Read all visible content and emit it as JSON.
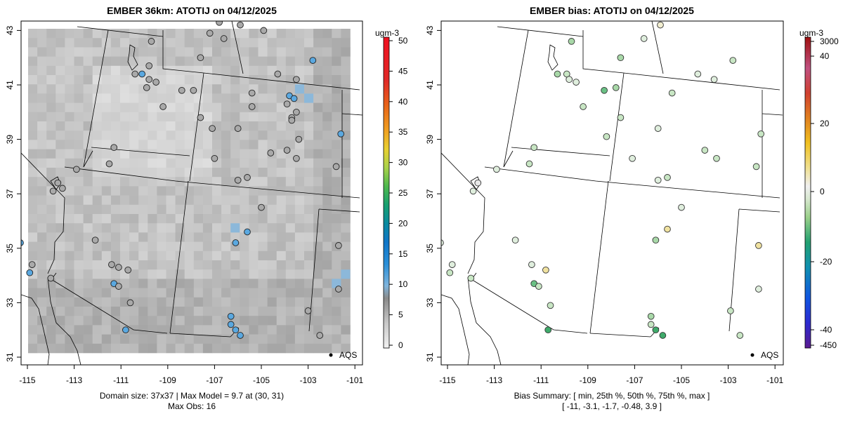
{
  "left_panel": {
    "title": "EMBER 36km: ATOTIJ on 04/12/2025",
    "x_ticks": [
      "-115",
      "-113",
      "-111",
      "-109",
      "-107",
      "-105",
      "-103",
      "-101"
    ],
    "y_ticks": [
      "31",
      "33",
      "35",
      "37",
      "39",
      "41",
      "43"
    ],
    "caption_line1": "Domain size: 37x37 | Max Model = 9.7 at (30, 31)",
    "caption_line2": "Max Obs: 16",
    "legend_label": "AQS",
    "colorbar": {
      "unit": "ugm-3",
      "labels": [
        "0",
        "5",
        "10",
        "15",
        "20",
        "25",
        "30",
        "35",
        "40",
        "45",
        "50"
      ]
    }
  },
  "right_panel": {
    "title": "EMBER bias: ATOTIJ on 04/12/2025",
    "x_ticks": [
      "-115",
      "-113",
      "-111",
      "-109",
      "-107",
      "-105",
      "-103",
      "-101"
    ],
    "y_ticks": [
      "31",
      "33",
      "35",
      "37",
      "39",
      "41",
      "43"
    ],
    "caption_line1": "Bias Summary: [ min, 25th %, 50th %, 75th %, max ]",
    "caption_line2": "[ -11,   -3.1,   -1.7,   -0.48,   3.9 ]",
    "legend_label": "AQS",
    "colorbar": {
      "unit": "ugm-3",
      "labels": [
        "3000",
        "40",
        "20",
        "0",
        "-20",
        "-40",
        "-450"
      ]
    }
  },
  "chart_data": [
    {
      "type": "heatmap",
      "title": "EMBER 36km: ATOTIJ on 04/12/2025",
      "xlim": [
        -115.3,
        -100.8
      ],
      "ylim": [
        30.8,
        43.3
      ],
      "colorbar_range": [
        0,
        50
      ],
      "series": [
        {
          "name": "AQS",
          "type": "scatter"
        }
      ],
      "stations": [
        [
          -114.9,
          34.1,
          12
        ],
        [
          -114.8,
          34.4,
          3
        ],
        [
          -113.9,
          37.1,
          3
        ],
        [
          -113.7,
          37.4,
          3
        ],
        [
          -113.5,
          37.2,
          3
        ],
        [
          -112.9,
          37.9,
          3
        ],
        [
          -112.1,
          35.3,
          3
        ],
        [
          -111.5,
          38.1,
          3
        ],
        [
          -111.3,
          38.7,
          3
        ],
        [
          -111.4,
          34.4,
          3
        ],
        [
          -111.1,
          34.3,
          3
        ],
        [
          -110.7,
          34.2,
          3
        ],
        [
          -111.3,
          33.7,
          12
        ],
        [
          -111.1,
          33.6,
          3
        ],
        [
          -110.6,
          33.0,
          3
        ],
        [
          -110.8,
          32.0,
          12
        ],
        [
          -109.7,
          42.6,
          3
        ],
        [
          -109.8,
          41.7,
          3
        ],
        [
          -110.1,
          41.4,
          12
        ],
        [
          -109.8,
          41.2,
          3
        ],
        [
          -109.9,
          40.9,
          3
        ],
        [
          -109.5,
          41.1,
          3
        ],
        [
          -110.4,
          41.4,
          3
        ],
        [
          -109.2,
          40.2,
          3
        ],
        [
          -108.4,
          40.8,
          3
        ],
        [
          -107.9,
          40.8,
          3
        ],
        [
          -107.6,
          42.0,
          3
        ],
        [
          -107.2,
          42.9,
          3
        ],
        [
          -106.8,
          43.3,
          3
        ],
        [
          -106.6,
          42.7,
          3
        ],
        [
          -105.9,
          43.2,
          3
        ],
        [
          -104.9,
          43.0,
          3
        ],
        [
          -104.3,
          41.4,
          3
        ],
        [
          -103.5,
          41.2,
          3
        ],
        [
          -105.4,
          40.7,
          3
        ],
        [
          -103.8,
          40.6,
          12
        ],
        [
          -103.6,
          40.5,
          12
        ],
        [
          -103.9,
          40.3,
          3
        ],
        [
          -103.5,
          40.0,
          3
        ],
        [
          -103.7,
          39.8,
          3
        ],
        [
          -103.7,
          39.7,
          3
        ],
        [
          -105.4,
          40.2,
          3
        ],
        [
          -106.0,
          39.4,
          3
        ],
        [
          -107.1,
          39.4,
          3
        ],
        [
          -107.6,
          39.8,
          3
        ],
        [
          -103.4,
          39.0,
          3
        ],
        [
          -103.9,
          38.6,
          3
        ],
        [
          -103.5,
          38.3,
          3
        ],
        [
          -104.6,
          38.5,
          3
        ],
        [
          -105.6,
          37.6,
          3
        ],
        [
          -107.0,
          38.3,
          3
        ],
        [
          -106.0,
          37.5,
          3
        ],
        [
          -105.0,
          36.5,
          3
        ],
        [
          -102.8,
          41.9,
          12
        ],
        [
          -101.6,
          39.2,
          12
        ],
        [
          -101.8,
          38.0,
          3
        ],
        [
          -105.6,
          35.6,
          12
        ],
        [
          -106.1,
          35.2,
          12
        ],
        [
          -101.7,
          35.1,
          3
        ],
        [
          -101.7,
          33.5,
          3
        ],
        [
          -103.0,
          32.7,
          3
        ],
        [
          -102.5,
          31.8,
          3
        ],
        [
          -106.3,
          32.5,
          12
        ],
        [
          -106.3,
          32.2,
          12
        ],
        [
          -106.1,
          32.0,
          12
        ],
        [
          -105.9,
          31.8,
          12
        ],
        [
          -115.3,
          35.2,
          12
        ],
        [
          -114.0,
          33.9,
          3
        ]
      ]
    },
    {
      "type": "scatter",
      "title": "EMBER bias: ATOTIJ on 04/12/2025",
      "xlim": [
        -115.3,
        -100.8
      ],
      "ylim": [
        30.8,
        43.3
      ],
      "colorbar_range": [
        -450,
        3000
      ],
      "bias_summary": {
        "min": -11,
        "p25": -3.1,
        "p50": -1.7,
        "p75": -0.48,
        "max": 3.9
      },
      "series": [
        {
          "name": "AQS"
        }
      ],
      "stations": [
        [
          -114.9,
          34.1,
          -3
        ],
        [
          -114.8,
          34.4,
          -1
        ],
        [
          -113.9,
          37.1,
          -1
        ],
        [
          -113.7,
          37.4,
          0
        ],
        [
          -112.9,
          37.9,
          -1
        ],
        [
          -112.1,
          35.3,
          -1
        ],
        [
          -111.5,
          38.1,
          -2
        ],
        [
          -111.3,
          38.7,
          -3
        ],
        [
          -111.4,
          34.4,
          -1
        ],
        [
          -110.8,
          34.2,
          3
        ],
        [
          -111.3,
          33.7,
          -7
        ],
        [
          -111.1,
          33.6,
          -3
        ],
        [
          -110.6,
          32.9,
          -2
        ],
        [
          -110.7,
          32.0,
          -8
        ],
        [
          -109.7,
          42.6,
          -4
        ],
        [
          -109.9,
          41.4,
          -2
        ],
        [
          -110.3,
          41.4,
          -4
        ],
        [
          -109.8,
          41.2,
          -1
        ],
        [
          -109.5,
          41.1,
          -1
        ],
        [
          -109.2,
          40.2,
          -3
        ],
        [
          -108.3,
          40.8,
          -6
        ],
        [
          -107.8,
          40.9,
          -5
        ],
        [
          -107.6,
          42.0,
          -5
        ],
        [
          -106.6,
          42.7,
          -1
        ],
        [
          -105.9,
          43.2,
          2
        ],
        [
          -104.3,
          41.4,
          -1
        ],
        [
          -103.6,
          41.2,
          -1
        ],
        [
          -102.8,
          41.9,
          -3
        ],
        [
          -105.4,
          40.7,
          -3
        ],
        [
          -107.6,
          39.8,
          -3
        ],
        [
          -108.2,
          39.1,
          -3
        ],
        [
          -106.0,
          39.4,
          -1
        ],
        [
          -107.1,
          38.3,
          -1
        ],
        [
          -104.0,
          38.6,
          -3
        ],
        [
          -103.5,
          38.3,
          -3
        ],
        [
          -105.6,
          37.6,
          -3
        ],
        [
          -106.0,
          37.5,
          -1
        ],
        [
          -105.0,
          36.5,
          -1
        ],
        [
          -101.6,
          39.2,
          -3
        ],
        [
          -101.8,
          38.0,
          -2
        ],
        [
          -105.6,
          35.7,
          3
        ],
        [
          -106.1,
          35.3,
          -4
        ],
        [
          -101.7,
          35.1,
          3
        ],
        [
          -101.7,
          33.5,
          -1
        ],
        [
          -102.9,
          32.7,
          -2
        ],
        [
          -102.5,
          31.8,
          -2
        ],
        [
          -106.3,
          32.5,
          -5
        ],
        [
          -106.3,
          32.2,
          -3
        ],
        [
          -106.1,
          32.0,
          -9
        ],
        [
          -105.8,
          31.8,
          -10
        ],
        [
          -114.0,
          33.9,
          -2
        ],
        [
          -115.3,
          35.2,
          -1
        ]
      ]
    }
  ]
}
